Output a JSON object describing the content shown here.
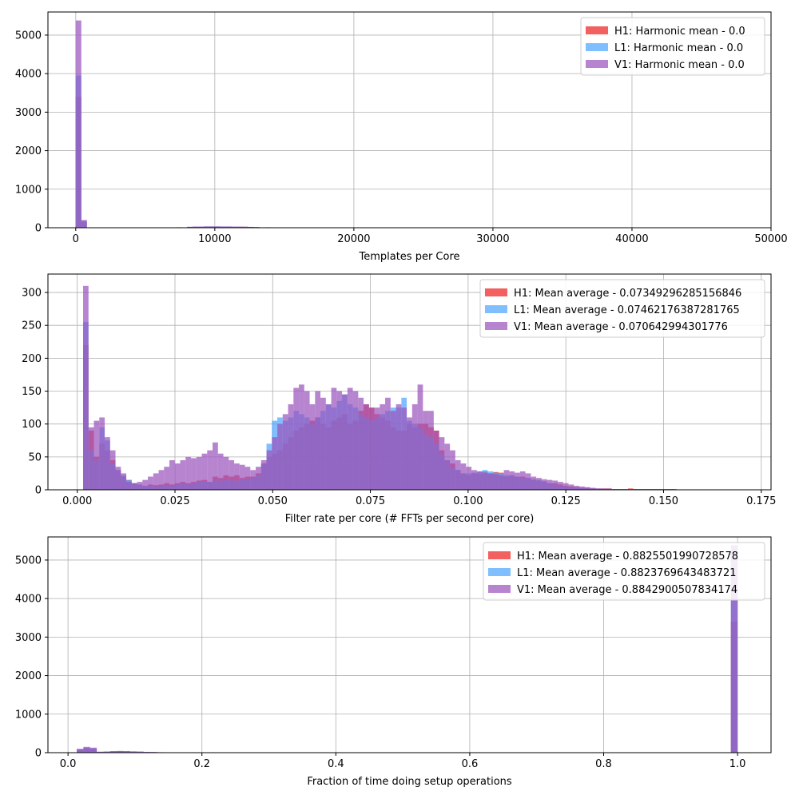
{
  "chart_data": [
    {
      "type": "bar",
      "subtype": "histogram",
      "xlabel": "Templates per Core",
      "ylabel": "",
      "xlim": [
        -2000,
        50000
      ],
      "ylim": [
        0,
        5600
      ],
      "xticks": [
        0,
        10000,
        20000,
        30000,
        40000,
        50000
      ],
      "xtick_labels": [
        "0",
        "10000",
        "20000",
        "30000",
        "40000",
        "50000"
      ],
      "yticks": [
        0,
        1000,
        2000,
        3000,
        4000,
        5000
      ],
      "ytick_labels": [
        "0",
        "1000",
        "2000",
        "3000",
        "4000",
        "5000"
      ],
      "grid": true,
      "legend_position": "upper-right",
      "bin_width": 400,
      "series": [
        {
          "name": "H1: Harmonic mean  - 0.0",
          "color": "#ee2222",
          "bins": [
            [
              0,
              3400
            ],
            [
              400,
              150
            ],
            [
              3600,
              8
            ],
            [
              4800,
              8
            ],
            [
              7200,
              10
            ],
            [
              8000,
              20
            ],
            [
              8400,
              25
            ],
            [
              8800,
              25
            ],
            [
              9200,
              30
            ],
            [
              9600,
              30
            ],
            [
              10000,
              30
            ],
            [
              10400,
              30
            ],
            [
              10800,
              30
            ],
            [
              11200,
              25
            ],
            [
              11600,
              25
            ],
            [
              12000,
              25
            ],
            [
              12400,
              20
            ],
            [
              12800,
              15
            ],
            [
              13600,
              10
            ],
            [
              14400,
              8
            ]
          ]
        },
        {
          "name": "L1: Harmonic mean  - 0.0",
          "color": "#4da6ff",
          "bins": [
            [
              0,
              3950
            ],
            [
              400,
              180
            ],
            [
              3600,
              8
            ],
            [
              4800,
              8
            ],
            [
              7200,
              10
            ],
            [
              8000,
              22
            ],
            [
              8400,
              26
            ],
            [
              8800,
              26
            ],
            [
              9200,
              32
            ],
            [
              9600,
              32
            ],
            [
              10000,
              32
            ],
            [
              10400,
              30
            ],
            [
              10800,
              30
            ],
            [
              11200,
              26
            ],
            [
              11600,
              26
            ],
            [
              12000,
              24
            ],
            [
              12400,
              20
            ],
            [
              12800,
              15
            ],
            [
              13600,
              10
            ],
            [
              14400,
              8
            ]
          ]
        },
        {
          "name": "V1: Harmonic mean  - 0.0",
          "color": "#9b55bd",
          "bins": [
            [
              0,
              5380
            ],
            [
              400,
              200
            ],
            [
              3600,
              10
            ],
            [
              4800,
              10
            ],
            [
              7200,
              12
            ],
            [
              8000,
              25
            ],
            [
              8400,
              30
            ],
            [
              8800,
              30
            ],
            [
              9200,
              35
            ],
            [
              9600,
              35
            ],
            [
              10000,
              35
            ],
            [
              10400,
              32
            ],
            [
              10800,
              32
            ],
            [
              11200,
              28
            ],
            [
              11600,
              28
            ],
            [
              12000,
              26
            ],
            [
              12400,
              22
            ],
            [
              12800,
              18
            ],
            [
              13600,
              12
            ],
            [
              14400,
              10
            ]
          ]
        }
      ]
    },
    {
      "type": "bar",
      "subtype": "histogram",
      "xlabel": "Filter rate per core (# FFTs per second per core)",
      "ylabel": "",
      "xlim": [
        -0.0075,
        0.1775
      ],
      "ylim": [
        0,
        328
      ],
      "xticks": [
        0.0,
        0.025,
        0.05,
        0.075,
        0.1,
        0.125,
        0.15,
        0.175
      ],
      "xtick_labels": [
        "0.000",
        "0.025",
        "0.050",
        "0.075",
        "0.100",
        "0.125",
        "0.150",
        "0.175"
      ],
      "yticks": [
        0,
        50,
        100,
        150,
        200,
        250,
        300
      ],
      "ytick_labels": [
        "0",
        "50",
        "100",
        "150",
        "200",
        "250",
        "300"
      ],
      "grid": true,
      "legend_position": "upper-right",
      "x_start": 0.0015,
      "bin_width": 0.00138,
      "series": [
        {
          "name": "H1: Mean average - 0.07349296285156846",
          "color": "#ee2222",
          "values": [
            220,
            90,
            50,
            70,
            60,
            45,
            30,
            20,
            15,
            10,
            8,
            6,
            8,
            7,
            8,
            10,
            8,
            10,
            12,
            10,
            12,
            14,
            15,
            12,
            20,
            18,
            22,
            20,
            22,
            18,
            20,
            20,
            25,
            40,
            50,
            55,
            60,
            70,
            80,
            90,
            95,
            100,
            105,
            110,
            100,
            95,
            105,
            110,
            115,
            100,
            105,
            120,
            130,
            125,
            115,
            110,
            105,
            95,
            90,
            90,
            100,
            95,
            100,
            100,
            95,
            90,
            60,
            45,
            40,
            30,
            25,
            22,
            25,
            24,
            28,
            25,
            27,
            26,
            20,
            22,
            20,
            20,
            18,
            15,
            14,
            13,
            10,
            10,
            8,
            6,
            5,
            4,
            3,
            3,
            2,
            2,
            2,
            2,
            1,
            1,
            1,
            2,
            1,
            1,
            1,
            1,
            1,
            1,
            1,
            1
          ]
        },
        {
          "name": "L1: Mean average - 0.07462176387281765",
          "color": "#4da6ff",
          "values": [
            255,
            60,
            45,
            95,
            75,
            40,
            30,
            22,
            15,
            10,
            8,
            6,
            6,
            5,
            6,
            7,
            6,
            8,
            10,
            8,
            10,
            12,
            13,
            12,
            14,
            14,
            15,
            14,
            14,
            16,
            16,
            18,
            22,
            40,
            70,
            105,
            110,
            105,
            110,
            120,
            115,
            110,
            100,
            110,
            120,
            130,
            125,
            135,
            145,
            130,
            125,
            115,
            110,
            105,
            110,
            115,
            120,
            125,
            125,
            140,
            105,
            100,
            95,
            85,
            80,
            70,
            55,
            45,
            35,
            30,
            25,
            25,
            26,
            28,
            30,
            28,
            26,
            25,
            22,
            22,
            20,
            18,
            18,
            16,
            15,
            12,
            10,
            8,
            6,
            5,
            4,
            3,
            3,
            2,
            2,
            2,
            1,
            1,
            1,
            1,
            1,
            1,
            1,
            1,
            1,
            1,
            1,
            1,
            1,
            1
          ]
        },
        {
          "name": "V1: Mean average - 0.070642994301776",
          "color": "#9b55bd",
          "values": [
            310,
            95,
            105,
            110,
            80,
            60,
            35,
            25,
            12,
            10,
            12,
            15,
            20,
            25,
            30,
            35,
            45,
            40,
            45,
            50,
            48,
            50,
            55,
            60,
            72,
            55,
            50,
            45,
            40,
            38,
            35,
            30,
            35,
            45,
            60,
            80,
            100,
            115,
            130,
            155,
            160,
            150,
            130,
            150,
            140,
            130,
            155,
            150,
            145,
            155,
            150,
            140,
            130,
            125,
            125,
            130,
            140,
            120,
            130,
            125,
            110,
            130,
            160,
            120,
            120,
            90,
            80,
            70,
            60,
            45,
            40,
            35,
            30,
            28,
            26,
            25,
            24,
            22,
            30,
            28,
            26,
            28,
            25,
            20,
            18,
            16,
            15,
            14,
            12,
            10,
            8,
            6,
            5,
            4,
            3,
            2,
            2,
            2,
            1,
            1,
            1,
            1,
            1,
            1,
            1,
            1,
            1,
            1,
            1,
            1
          ]
        }
      ]
    },
    {
      "type": "bar",
      "subtype": "histogram",
      "xlabel": "Fraction of time doing setup operations",
      "ylabel": "",
      "xlim": [
        -0.03,
        1.05
      ],
      "ylim": [
        0,
        5600
      ],
      "xticks": [
        0.0,
        0.2,
        0.4,
        0.6,
        0.8,
        1.0
      ],
      "xtick_labels": [
        "0.0",
        "0.2",
        "0.4",
        "0.6",
        "0.8",
        "1.0"
      ],
      "yticks": [
        0,
        1000,
        2000,
        3000,
        4000,
        5000
      ],
      "ytick_labels": [
        "0",
        "1000",
        "2000",
        "3000",
        "4000",
        "5000"
      ],
      "grid": true,
      "legend_position": "upper-right",
      "bin_width": 0.0099,
      "series": [
        {
          "name": "H1: Mean average - 0.8825501990728578",
          "color": "#ee2222",
          "bins": [
            [
              0.013,
              80
            ],
            [
              0.023,
              120
            ],
            [
              0.033,
              100
            ],
            [
              0.043,
              20
            ],
            [
              0.053,
              25
            ],
            [
              0.063,
              35
            ],
            [
              0.073,
              40
            ],
            [
              0.083,
              35
            ],
            [
              0.093,
              30
            ],
            [
              0.103,
              25
            ],
            [
              0.113,
              18
            ],
            [
              0.123,
              15
            ],
            [
              0.133,
              10
            ],
            [
              0.143,
              8
            ],
            [
              0.99,
              3400
            ]
          ]
        },
        {
          "name": "L1: Mean average - 0.8823769643483721",
          "color": "#4da6ff",
          "bins": [
            [
              0.013,
              90
            ],
            [
              0.023,
              130
            ],
            [
              0.033,
              110
            ],
            [
              0.043,
              22
            ],
            [
              0.053,
              26
            ],
            [
              0.063,
              36
            ],
            [
              0.073,
              42
            ],
            [
              0.083,
              36
            ],
            [
              0.093,
              30
            ],
            [
              0.103,
              25
            ],
            [
              0.113,
              18
            ],
            [
              0.123,
              15
            ],
            [
              0.133,
              10
            ],
            [
              0.143,
              8
            ],
            [
              0.99,
              3950
            ]
          ]
        },
        {
          "name": "V1: Mean average - 0.8842900507834174",
          "color": "#9b55bd",
          "bins": [
            [
              0.013,
              100
            ],
            [
              0.023,
              150
            ],
            [
              0.033,
              130
            ],
            [
              0.043,
              25
            ],
            [
              0.053,
              30
            ],
            [
              0.063,
              40
            ],
            [
              0.073,
              45
            ],
            [
              0.083,
              40
            ],
            [
              0.093,
              34
            ],
            [
              0.103,
              28
            ],
            [
              0.113,
              20
            ],
            [
              0.123,
              16
            ],
            [
              0.133,
              12
            ],
            [
              0.143,
              9
            ],
            [
              0.99,
              5380
            ]
          ]
        }
      ]
    }
  ]
}
